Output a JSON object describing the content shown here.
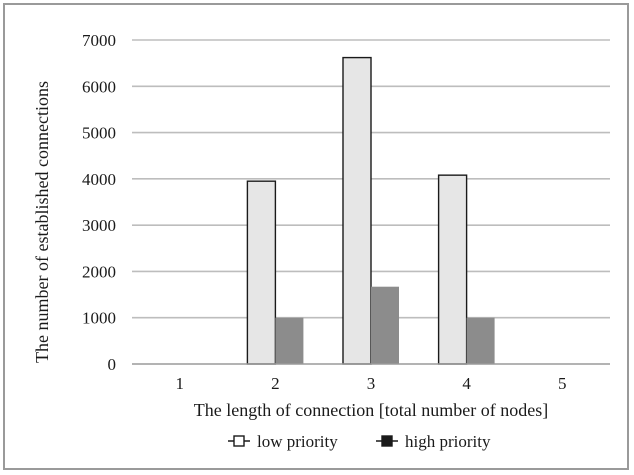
{
  "chart_data": {
    "type": "bar",
    "categories": [
      "1",
      "2",
      "3",
      "4",
      "5"
    ],
    "series": [
      {
        "name": "low priority",
        "values": [
          0,
          3950,
          6620,
          4080,
          0
        ],
        "color": "#e6e6e6",
        "stroke": "#1a1a1a"
      },
      {
        "name": "high priority",
        "values": [
          0,
          1000,
          1670,
          1000,
          0
        ],
        "color": "#8c8c8c",
        "stroke": "#8c8c8c"
      }
    ],
    "xlabel": "The length of connection [total number of nodes]",
    "ylabel": "The number of established connections",
    "ylim": [
      0,
      7000
    ],
    "yticks": [
      0,
      1000,
      2000,
      3000,
      4000,
      5000,
      6000,
      7000
    ],
    "grid": true,
    "legend_position": "bottom",
    "colors": {
      "gridline": "#bdbdbd",
      "axis": "#9a9a9a",
      "frame": "#9a9a9a"
    }
  }
}
